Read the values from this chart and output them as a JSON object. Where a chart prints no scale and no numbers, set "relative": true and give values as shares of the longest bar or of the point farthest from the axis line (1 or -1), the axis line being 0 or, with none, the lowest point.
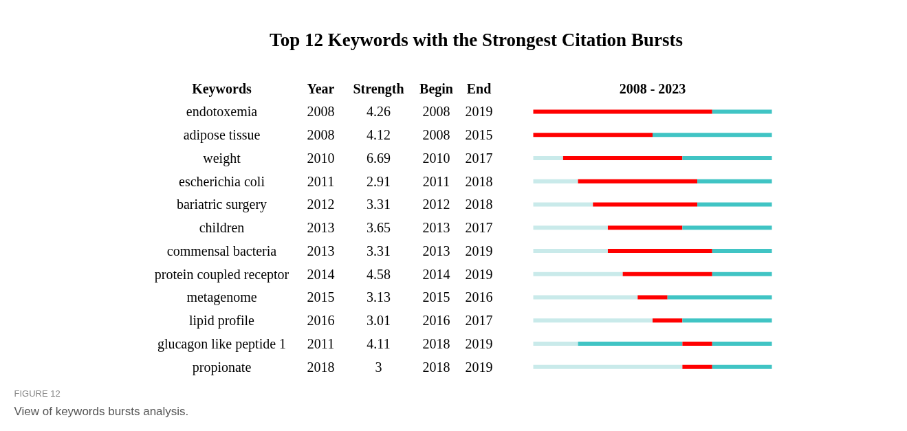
{
  "chart_data": {
    "type": "bar",
    "orientation": "horizontal",
    "stacked": true,
    "title": "Top 12 Keywords with the Strongest Citation Bursts",
    "ylabel": "Keywords",
    "xlabel": "2008 - 2023",
    "categories": [
      "endotoxemia",
      "adipose tissue",
      "weight",
      "escherichia coli",
      "bariatric surgery",
      "children",
      "commensal bacteria",
      "protein coupled receptor",
      "metagenome",
      "lipid profile",
      "glucagon like peptide 1",
      "propionate"
    ],
    "relative": true,
    "series": [
      {
        "color": "#c9eaea",
        "values": [
          null,
          null,
          0.125,
          0.1875,
          0.25,
          0.3125,
          0.3125,
          0.375,
          0.4375,
          0.5,
          0.1875,
          0.625
        ]
      },
      {
        "color": "#40c4c4",
        "values": [
          null,
          null,
          null,
          null,
          null,
          null,
          null,
          null,
          null,
          null,
          0.4375,
          null
        ]
      },
      {
        "color": "#ff0000",
        "values": [
          0.75,
          0.5,
          0.5,
          0.5,
          0.4375,
          0.3125,
          0.4375,
          0.375,
          0.125,
          0.125,
          0.125,
          0.125
        ]
      },
      {
        "color": "#40c4c4",
        "values": [
          0.25,
          0.5,
          0.375,
          0.3125,
          0.3125,
          0.375,
          0.25,
          0.25,
          0.4375,
          0.375,
          0.25,
          0.25
        ]
      }
    ],
    "annotations": [
      "Year",
      "Strength",
      "Begin",
      "End",
      "2008",
      "4.26",
      "2008",
      "2019",
      "2008",
      "4.12",
      "2008",
      "2015",
      "2010",
      "6.69",
      "2010",
      "2017",
      "2011",
      "2.91",
      "2011",
      "2018",
      "2012",
      "3.31",
      "2012",
      "2018",
      "2013",
      "3.65",
      "2013",
      "2017",
      "2013",
      "3.31",
      "2013",
      "2019",
      "2014",
      "4.58",
      "2014",
      "2019",
      "2015",
      "3.13",
      "2015",
      "2016",
      "2016",
      "3.01",
      "2016",
      "2017",
      "2011",
      "4.11",
      "2018",
      "2019",
      "2018",
      "3",
      "2018",
      "2019",
      "FIGURE 12",
      "View of keywords bursts analysis."
    ]
  }
}
